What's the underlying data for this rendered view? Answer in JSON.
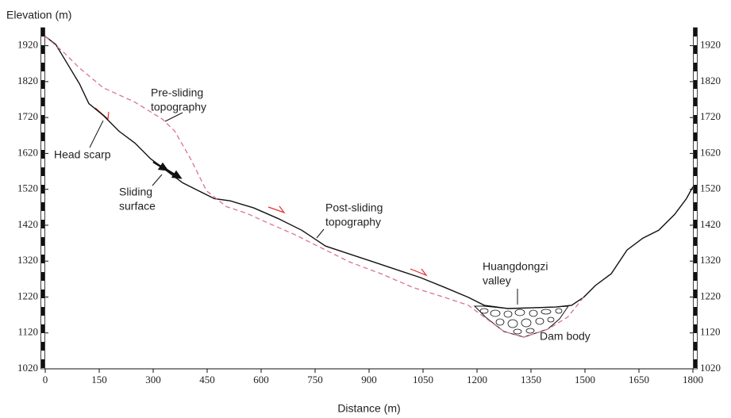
{
  "chart_data": {
    "type": "line",
    "y_label": "Elevation (m)",
    "x_label": "Distance (m)",
    "xlim": [
      0,
      1800
    ],
    "ylim": [
      1020,
      1970
    ],
    "xticks": [
      0,
      150,
      300,
      450,
      600,
      750,
      900,
      1050,
      1200,
      1350,
      1500,
      1650,
      1800
    ],
    "yticks": [
      1020,
      1120,
      1220,
      1320,
      1420,
      1520,
      1620,
      1720,
      1820,
      1920
    ],
    "series": [
      {
        "color": "#111111",
        "dash": false,
        "x": [
          0,
          29,
          62,
          95,
          121,
          161,
          205,
          249,
          293,
          338,
          382,
          426,
          470,
          514,
          580,
          646,
          713,
          752,
          779,
          845,
          911,
          977,
          1043,
          1110,
          1176,
          1220,
          1286,
          1352,
          1419,
          1463,
          1496,
          1529,
          1573,
          1617,
          1661,
          1705,
          1749,
          1782,
          1800
        ],
        "values": [
          1946,
          1924,
          1869,
          1814,
          1759,
          1726,
          1682,
          1649,
          1605,
          1571,
          1538,
          1516,
          1494,
          1488,
          1468,
          1439,
          1406,
          1380,
          1362,
          1340,
          1318,
          1296,
          1274,
          1247,
          1219,
          1197,
          1188,
          1190,
          1192,
          1197,
          1219,
          1252,
          1285,
          1351,
          1384,
          1406,
          1450,
          1494,
          1527
        ]
      },
      {
        "color": "#d9738c",
        "dash": true,
        "x": [
          0,
          51,
          95,
          161,
          249,
          326,
          360,
          404,
          448,
          503,
          558,
          624,
          691,
          757,
          845,
          933,
          1021,
          1110,
          1176,
          1220,
          1275,
          1330,
          1396,
          1452,
          1496
        ],
        "values": [
          1946,
          1902,
          1858,
          1803,
          1763,
          1715,
          1682,
          1605,
          1516,
          1472,
          1454,
          1424,
          1395,
          1362,
          1318,
          1285,
          1247,
          1219,
          1197,
          1164,
          1124,
          1108,
          1130,
          1164,
          1219
        ]
      }
    ],
    "annotations": [
      {
        "lines": [
          "Pre-sliding",
          "topography"
        ]
      },
      {
        "lines": [
          "Head scarp"
        ]
      },
      {
        "lines": [
          "Sliding",
          "surface"
        ]
      },
      {
        "lines": [
          "Post-sliding",
          "topography"
        ]
      },
      {
        "lines": [
          "Huangdongzi",
          "valley"
        ]
      },
      {
        "lines": [
          "Dam body"
        ]
      }
    ]
  }
}
